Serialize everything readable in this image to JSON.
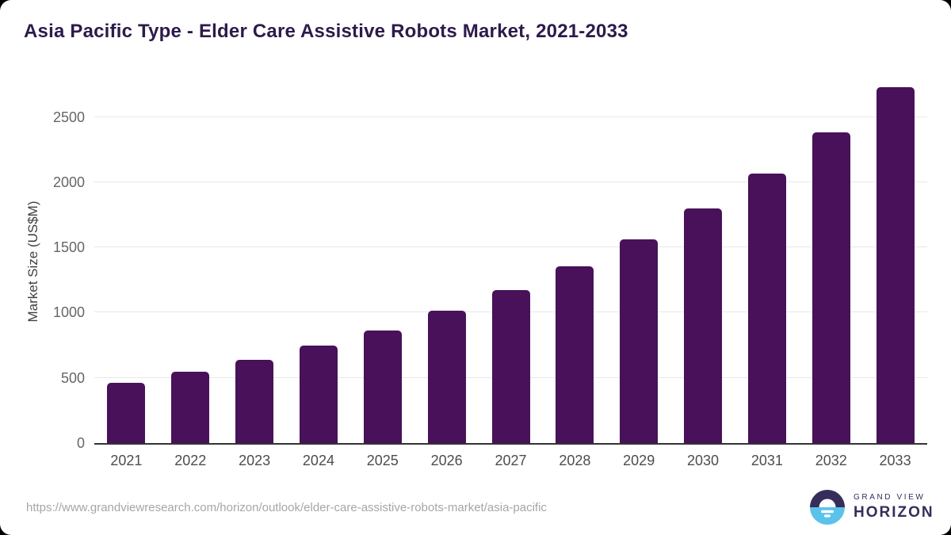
{
  "chart": {
    "title": "Asia Pacific Type - Elder Care Assistive Robots Market, 2021-2033",
    "ylabel": "Market Size (US$M)"
  },
  "chart_data": {
    "type": "bar",
    "title": "Asia Pacific Type - Elder Care Assistive Robots Market, 2021-2033",
    "categories": [
      "2021",
      "2022",
      "2023",
      "2024",
      "2025",
      "2026",
      "2027",
      "2028",
      "2029",
      "2030",
      "2031",
      "2032",
      "2033"
    ],
    "values": [
      465,
      545,
      640,
      745,
      865,
      1015,
      1175,
      1355,
      1560,
      1800,
      2065,
      2380,
      2730
    ],
    "xlabel": "",
    "ylabel": "Market Size (US$M)",
    "ylim": [
      0,
      2790
    ],
    "yticks": [
      0,
      500,
      1000,
      1500,
      2000,
      2500
    ],
    "grid": true,
    "legend": "none",
    "bar_color": "#481159"
  },
  "colors": {
    "title_text": "#2e1a4b",
    "bar": "#481159",
    "axis_line": "#343434",
    "gridline": "#e8e8e8",
    "y_tick_text": "#666666",
    "x_tick_text": "#4d4d4d",
    "url_text": "#a6a6a6",
    "logo_navy": "#372d5a",
    "logo_blue": "#5bc2ea"
  },
  "footer": {
    "source_url": "https://www.grandviewresearch.com/horizon/outlook/elder-care-assistive-robots-market/asia-pacific",
    "logo": {
      "icon": "horizon-sun-icon",
      "top_text": "GRAND VIEW",
      "bottom_text": "HORIZON"
    }
  }
}
